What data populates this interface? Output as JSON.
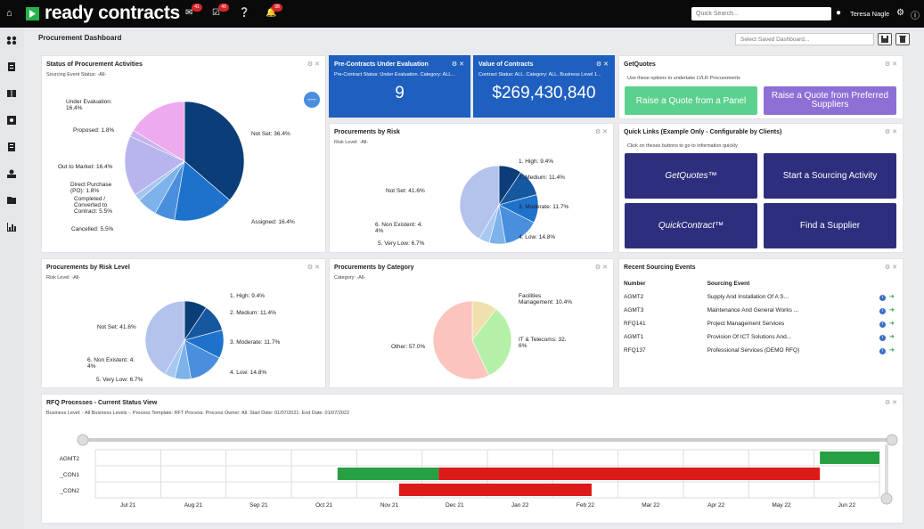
{
  "header": {
    "logo_text": "ready contracts",
    "badges": {
      "messages": "41",
      "tasks": "49",
      "notifications": "98"
    },
    "search_placeholder": "Quick Search...",
    "user_name": "Teresa Nagle"
  },
  "page": {
    "title": "Procurement Dashboard",
    "saved_dashboard_placeholder": "Select Saved Dashboard..."
  },
  "panel_status": {
    "title": "Status of Procurement Activities",
    "subtitle": "Sourcing Event Status: -All-",
    "labels": [
      "Under Evaluation:",
      "16.4%",
      "Proposed: 1.8%",
      "Out to Market: 16.4%",
      "Direct Purchase",
      "(PO): 1.8%",
      "Completed /",
      "Converted to",
      "Contract: 5.5%",
      "Cancelled: 5.5%",
      "Assigned: 16.4%",
      "Not Set: 36.4%"
    ]
  },
  "panel_pre": {
    "title": "Pre-Contracts Under Evaluation",
    "subtitle": "Pre-Contract Status: Under Evaluation. Category: ALL...",
    "value": "9"
  },
  "panel_value": {
    "title": "Value of Contracts",
    "subtitle": "Contract Status: ALL. Category: ALL. Business Level 1...",
    "value": "$269,430,840"
  },
  "panel_getquotes": {
    "title": "GetQuotes",
    "subtitle": "Use these options to undertake LVLR Procurements",
    "btn1": "Raise a Quote from a Panel",
    "btn2": "Raise a Quote from Preferred Suppliers"
  },
  "panel_risk": {
    "title": "Procurements by Risk",
    "subtitle": "Risk Level: -All-",
    "labels": [
      "1. High: 9.4%",
      "2. Medium: 11.4%",
      "3. Moderate: 11.7%",
      "4. Low: 14.8%",
      "5. Very Low: 6.7%",
      "6. Non Existent: 4.",
      "4%",
      "Not Set: 41.6%"
    ]
  },
  "panel_quicklinks": {
    "title": "Quick Links (Example Only - Configurable by Clients)",
    "subtitle": "Click on theses buttons to go to information quickly",
    "buttons": [
      "GetQuotes™",
      "Start a Sourcing Activity",
      "QuickContract™",
      "Find a Supplier"
    ]
  },
  "panel_risklevel": {
    "title": "Procurements by Risk Level",
    "subtitle": "Risk Level: -All-",
    "labels": [
      "1. High: 9.4%",
      "2. Medium: 11.4%",
      "3. Moderate: 11.7%",
      "4. Low: 14.8%",
      "5. Very Low: 6.7%",
      "6. Non Existent: 4.",
      "4%",
      "Not Set: 41.6%"
    ]
  },
  "panel_category": {
    "title": "Procurements by Category",
    "subtitle": "Category: -All-",
    "labels": [
      "Facilities",
      "Management: 10.4%",
      "IT & Telecoms: 32.",
      "6%",
      "Other: 57.0%"
    ]
  },
  "panel_events": {
    "title": "Recent Sourcing Events",
    "col_number": "Number",
    "col_event": "Sourcing Event",
    "rows": [
      {
        "number": "AGMT2",
        "event": "Supply And Installation Of A S..."
      },
      {
        "number": "AGMT3",
        "event": "Maintenance And General Works ..."
      },
      {
        "number": "RFQ141",
        "event": "Project Management Services"
      },
      {
        "number": "AGMT1",
        "event": "Provision Of ICT Solutions And..."
      },
      {
        "number": "RFQ137",
        "event": "Professional Services (DEMO RFQ)"
      }
    ]
  },
  "panel_rfq": {
    "title": "RFQ Processes - Current Status View",
    "subtitle": "Business Level: - All Business Levels -. Process Template: RFT Process. Process Owner: All. Start Date: 01/07/2021. End Date: 01/07/2022"
  },
  "chart_data": [
    {
      "type": "pie",
      "title": "Status of Procurement Activities",
      "categories": [
        "Not Set",
        "Assigned",
        "Cancelled",
        "Completed / Converted to Contract",
        "Direct Purchase (PO)",
        "Out to Market",
        "Proposed",
        "Under Evaluation"
      ],
      "values": [
        36.4,
        16.4,
        5.5,
        5.5,
        1.8,
        16.4,
        1.8,
        16.4
      ],
      "colors": [
        "#0b3d78",
        "#1e72cc",
        "#4a8fde",
        "#7eb2ea",
        "#a7c5f0",
        "#b8b5ee",
        "#c9b3f0",
        "#eeaaee"
      ]
    },
    {
      "type": "pie",
      "title": "Procurements by Risk",
      "categories": [
        "1. High",
        "2. Medium",
        "3. Moderate",
        "4. Low",
        "5. Very Low",
        "6. Non Existent",
        "Not Set"
      ],
      "values": [
        9.4,
        11.4,
        11.7,
        14.8,
        6.7,
        4.4,
        41.6
      ],
      "colors": [
        "#0b3d78",
        "#16589f",
        "#1e72cc",
        "#4a8fde",
        "#7eb2ea",
        "#a7c8f0",
        "#b3c3ee"
      ]
    },
    {
      "type": "pie",
      "title": "Procurements by Risk Level",
      "categories": [
        "1. High",
        "2. Medium",
        "3. Moderate",
        "4. Low",
        "5. Very Low",
        "6. Non Existent",
        "Not Set"
      ],
      "values": [
        9.4,
        11.4,
        11.7,
        14.8,
        6.7,
        4.4,
        41.6
      ],
      "colors": [
        "#0b3d78",
        "#16589f",
        "#1e72cc",
        "#4a8fde",
        "#7eb2ea",
        "#a7c8f0",
        "#b3c3ee"
      ]
    },
    {
      "type": "pie",
      "title": "Procurements by Category",
      "categories": [
        "Facilities Management",
        "IT & Telecoms",
        "Other"
      ],
      "values": [
        10.4,
        32.6,
        57.0
      ],
      "colors": [
        "#f2dfae",
        "#b5f0a8",
        "#fbc4bd"
      ]
    },
    {
      "type": "gantt",
      "title": "RFQ Processes - Current Status View",
      "x_ticks": [
        "Jul 21",
        "Aug 21",
        "Sep 21",
        "Oct 21",
        "Nov 21",
        "Dec 21",
        "Jan 22",
        "Feb 22",
        "Mar 22",
        "Apr 22",
        "May 22",
        "Jun 22"
      ],
      "rows": [
        "AGMT2",
        "_CON1",
        "_CON2"
      ],
      "bars": [
        {
          "row": "AGMT2",
          "start": "2022-06-15",
          "end": "2022-07-15",
          "color": "#27a043"
        },
        {
          "row": "_CON1",
          "start": "2021-10-15",
          "end": "2021-12-05",
          "color": "#27a043"
        },
        {
          "row": "_CON1",
          "start": "2021-12-05",
          "end": "2022-06-15",
          "color": "#dd1a1a"
        },
        {
          "row": "_CON2",
          "start": "2021-11-15",
          "end": "2022-02-20",
          "color": "#dd1a1a"
        }
      ]
    }
  ]
}
